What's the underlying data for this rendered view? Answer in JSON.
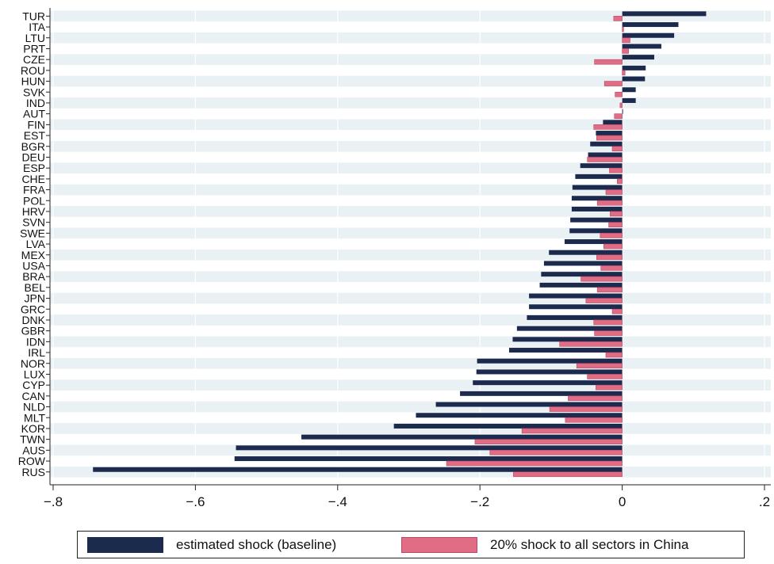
{
  "chart_data": {
    "type": "bar",
    "orientation": "horizontal",
    "categories": [
      "TUR",
      "ITA",
      "LTU",
      "PRT",
      "CZE",
      "ROU",
      "HUN",
      "SVK",
      "IND",
      "AUT",
      "FIN",
      "EST",
      "BGR",
      "DEU",
      "ESP",
      "CHE",
      "FRA",
      "POL",
      "HRV",
      "SVN",
      "SWE",
      "LVA",
      "MEX",
      "USA",
      "BRA",
      "BEL",
      "JPN",
      "GRC",
      "DNK",
      "GBR",
      "IDN",
      "IRL",
      "NOR",
      "LUX",
      "CYP",
      "CAN",
      "NLD",
      "MLT",
      "KOR",
      "TWN",
      "AUS",
      "ROW",
      "RUS"
    ],
    "series": [
      {
        "name": "estimated shock (baseline)",
        "color": "#1c2a4e",
        "values": [
          0.118,
          0.079,
          0.073,
          0.055,
          0.045,
          0.033,
          0.032,
          0.019,
          0.019,
          0.001,
          -0.027,
          -0.037,
          -0.045,
          -0.048,
          -0.059,
          -0.066,
          -0.07,
          -0.071,
          -0.071,
          -0.073,
          -0.074,
          -0.081,
          -0.103,
          -0.11,
          -0.114,
          -0.116,
          -0.131,
          -0.131,
          -0.134,
          -0.148,
          -0.154,
          -0.159,
          -0.204,
          -0.205,
          -0.21,
          -0.228,
          -0.262,
          -0.29,
          -0.321,
          -0.451,
          -0.543,
          -0.545,
          -0.744
        ]
      },
      {
        "name": "20% shock to all sectors in China",
        "color": "#e06c85",
        "values": [
          -0.012,
          0.002,
          0.011,
          0.009,
          -0.039,
          0.004,
          -0.025,
          -0.01,
          -0.003,
          -0.011,
          -0.04,
          -0.036,
          -0.014,
          -0.049,
          -0.018,
          -0.007,
          -0.023,
          -0.035,
          -0.017,
          -0.019,
          -0.031,
          -0.026,
          -0.036,
          -0.03,
          -0.058,
          -0.035,
          -0.051,
          -0.014,
          -0.04,
          -0.039,
          -0.088,
          -0.023,
          -0.064,
          -0.049,
          -0.037,
          -0.076,
          -0.102,
          -0.08,
          -0.141,
          -0.207,
          -0.186,
          -0.247,
          -0.153
        ]
      }
    ],
    "xlim": [
      -0.8,
      0.2
    ],
    "xticks": [
      "−.8",
      "−.6",
      "−.4",
      "−.2",
      "0",
      ".2"
    ],
    "xtick_values": [
      -0.8,
      -0.6,
      -0.4,
      -0.2,
      0,
      0.2
    ],
    "xlabel": "",
    "ylabel": "",
    "title": "",
    "grid": true,
    "legend_position": "bottom"
  }
}
